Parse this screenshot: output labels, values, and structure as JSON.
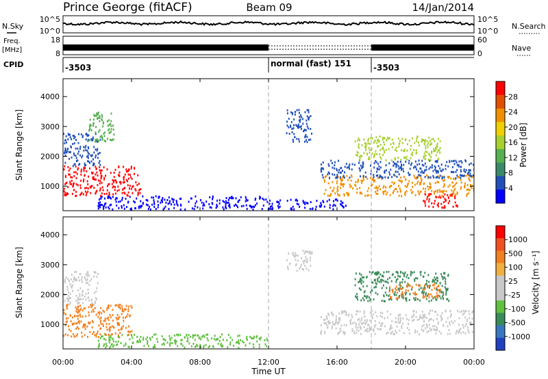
{
  "header": {
    "station": "Prince George (fitACF)",
    "beam": "Beam 09",
    "date": "14/Jan/2014"
  },
  "nsky_panel": {
    "left_label": "N.Sky",
    "right_label": "N.Search",
    "left_ticks": [
      "10^5",
      "10^0"
    ],
    "right_ticks": [
      "10^5",
      "10^0"
    ]
  },
  "freq_panel": {
    "left_label": "Freq.",
    "left_unit": "[MHz]",
    "left_ticks": [
      "18",
      "8"
    ],
    "right_ticks": [
      "60",
      "0"
    ],
    "right_label": "Nave"
  },
  "cpid": {
    "label": "CPID",
    "segments": [
      {
        "start_hour": 0,
        "text": "-3503"
      },
      {
        "start_hour": 12,
        "text": "normal (fast) 151"
      },
      {
        "start_hour": 18,
        "text": "-3503"
      }
    ]
  },
  "power_panel": {
    "ylabel": "Slant Range [km]",
    "yticks": [
      1000,
      2000,
      3000,
      4000
    ],
    "colorbar_label": "Power [dB]",
    "colorbar_ticks": [
      "28",
      "24",
      "20",
      "16",
      "12",
      "8",
      "4"
    ],
    "colorbar_colors": [
      "#0000ff",
      "#2050b8",
      "#3a8a6a",
      "#58b050",
      "#a8d030",
      "#f0d000",
      "#f09000",
      "#e05000",
      "#ff0000"
    ]
  },
  "velocity_panel": {
    "ylabel": "Slant Range [km]",
    "yticks": [
      1000,
      2000,
      3000,
      4000
    ],
    "colorbar_label": "Velocity [m s⁻¹]",
    "colorbar_ticks": [
      "1000",
      "500",
      "100",
      "25",
      "-25",
      "-100",
      "-500",
      "-1000"
    ],
    "colorbar_colors": [
      "#2040c0",
      "#3878c0",
      "#3a8a5a",
      "#60c040",
      "#c8c8c8",
      "#c8c8c8",
      "#f0b040",
      "#f08020",
      "#f05020",
      "#ff0000"
    ]
  },
  "xaxis": {
    "title": "Time UT",
    "ticks": [
      "00:00",
      "04:00",
      "08:00",
      "12:00",
      "16:00",
      "20:00",
      "00:00"
    ]
  },
  "chart_data": {
    "type": "heatmap",
    "x_range_hours": [
      0,
      24
    ],
    "y_range_km": [
      180,
      4600
    ],
    "mode_change_hours": [
      12,
      18
    ],
    "power_scatter": [
      {
        "t0": 0.0,
        "t1": 4.5,
        "r0": 700,
        "r1": 1700,
        "color": "#ff0000"
      },
      {
        "t0": 0.0,
        "t1": 2.2,
        "r0": 1700,
        "r1": 2800,
        "color": "#2050b8"
      },
      {
        "t0": 1.4,
        "t1": 3.0,
        "r0": 2500,
        "r1": 3500,
        "color": "#58b050"
      },
      {
        "t0": 2.0,
        "t1": 12.0,
        "r0": 250,
        "r1": 700,
        "color": "#0000ff"
      },
      {
        "t0": 12.0,
        "t1": 16.5,
        "r0": 250,
        "r1": 600,
        "color": "#0000ff"
      },
      {
        "t0": 13.0,
        "t1": 14.5,
        "r0": 2500,
        "r1": 3600,
        "color": "#2050b8"
      },
      {
        "t0": 15.2,
        "t1": 24.0,
        "r0": 700,
        "r1": 1400,
        "color": "#f09000"
      },
      {
        "t0": 15.0,
        "t1": 24.0,
        "r0": 1300,
        "r1": 1900,
        "color": "#2050b8"
      },
      {
        "t0": 17.0,
        "t1": 22.0,
        "r0": 1900,
        "r1": 2700,
        "color": "#a8d030"
      },
      {
        "t0": 21.0,
        "t1": 23.0,
        "r0": 300,
        "r1": 800,
        "color": "#ff0000"
      }
    ],
    "velocity_scatter": [
      {
        "t0": 0.0,
        "t1": 4.0,
        "r0": 600,
        "r1": 1700,
        "color": "#f08020"
      },
      {
        "t0": 0.0,
        "t1": 2.0,
        "r0": 1700,
        "r1": 2800,
        "color": "#c8c8c8"
      },
      {
        "t0": 2.0,
        "t1": 12.0,
        "r0": 250,
        "r1": 700,
        "color": "#60c040"
      },
      {
        "t0": 13.0,
        "t1": 14.5,
        "r0": 2800,
        "r1": 3500,
        "color": "#c8c8c8"
      },
      {
        "t0": 15.0,
        "t1": 24.0,
        "r0": 700,
        "r1": 1500,
        "color": "#c8c8c8"
      },
      {
        "t0": 17.0,
        "t1": 22.5,
        "r0": 1800,
        "r1": 2800,
        "color": "#3a8a5a"
      },
      {
        "t0": 19.0,
        "t1": 22.0,
        "r0": 1900,
        "r1": 2400,
        "color": "#f08020"
      }
    ]
  }
}
